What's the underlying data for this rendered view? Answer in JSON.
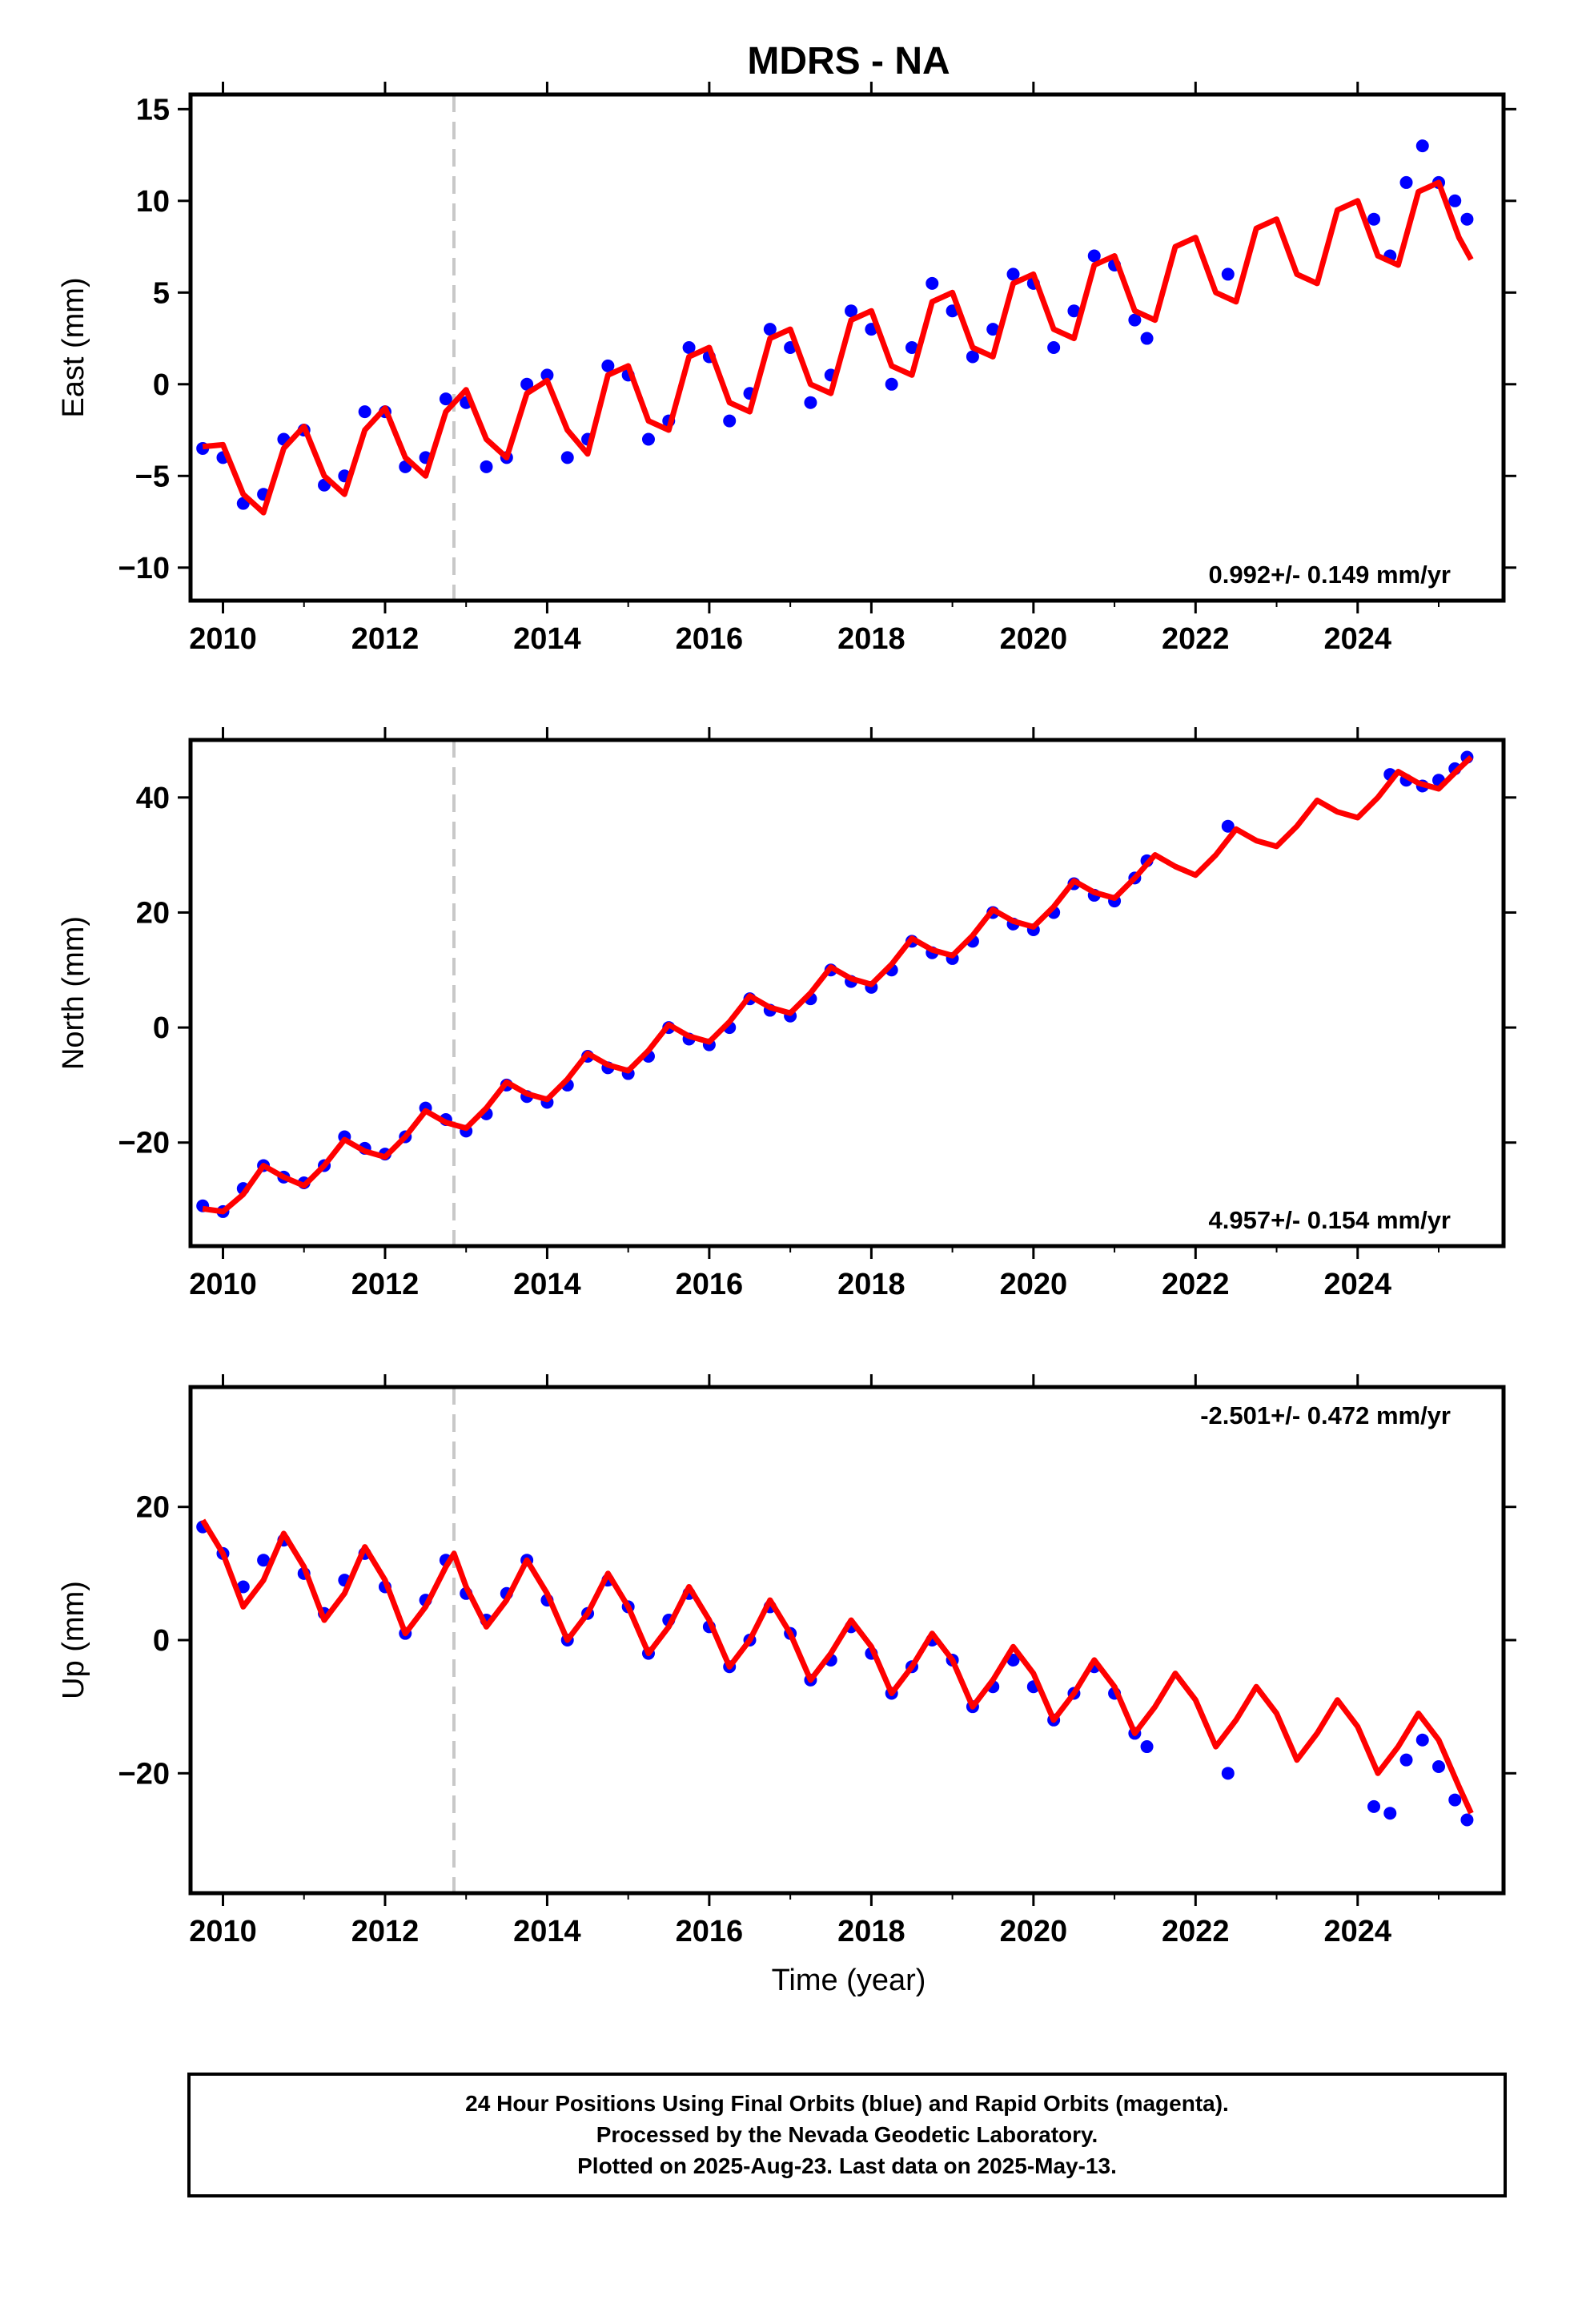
{
  "title": "MDRS - NA",
  "xlabel": "Time (year)",
  "footer": {
    "line1": "24 Hour Positions Using Final Orbits (blue) and Rapid Orbits (magenta).",
    "line2": "Processed by the Nevada Geodetic Laboratory.",
    "line3": "Plotted on 2025-Aug-23. Last data on 2025-May-13."
  },
  "colors": {
    "data": "#0000ff",
    "model": "#ff0000",
    "step": "#c8c8c8",
    "frame": "#000000"
  },
  "chart_data": [
    {
      "type": "scatter",
      "ylabel": "East (mm)",
      "rate_label": "0.992+/- 0.149 mm/yr",
      "xlim": [
        2009.6,
        2025.8
      ],
      "ylim": [
        -11.8,
        15.8
      ],
      "xticks": [
        2010,
        2012,
        2014,
        2016,
        2018,
        2020,
        2022,
        2024
      ],
      "xtick_labels": [
        "2010",
        "2012",
        "2014",
        "2016",
        "2018",
        "2020",
        "2022",
        "2024"
      ],
      "yticks": [
        -10,
        -5,
        0,
        5,
        10,
        15
      ],
      "ytick_labels": [
        "−10",
        "−5",
        "0",
        "5",
        "10",
        "15"
      ],
      "step_epoch": 2012.85,
      "grid": false,
      "series": [
        {
          "role": "data",
          "x": [
            2009.75,
            2010.0,
            2010.25,
            2010.5,
            2010.75,
            2011.0,
            2011.25,
            2011.5,
            2011.75,
            2012.0,
            2012.25,
            2012.5,
            2012.75,
            2013.0,
            2013.25,
            2013.5,
            2013.75,
            2014.0,
            2014.25,
            2014.5,
            2014.75,
            2015.0,
            2015.25,
            2015.5,
            2015.75,
            2016.0,
            2016.25,
            2016.5,
            2016.75,
            2017.0,
            2017.25,
            2017.5,
            2017.75,
            2018.0,
            2018.25,
            2018.5,
            2018.75,
            2019.0,
            2019.25,
            2019.5,
            2019.75,
            2020.0,
            2020.25,
            2020.5,
            2020.75,
            2021.0,
            2021.25,
            2021.4,
            2022.4,
            2024.2,
            2024.4,
            2024.6,
            2024.8,
            2025.0,
            2025.2,
            2025.35
          ],
          "y": [
            -3.5,
            -4.0,
            -6.5,
            -6.0,
            -3.0,
            -2.5,
            -5.5,
            -5.0,
            -1.5,
            -1.5,
            -4.5,
            -4.0,
            -0.8,
            -1.0,
            -4.5,
            -4.0,
            0.0,
            0.5,
            -4.0,
            -3.0,
            1.0,
            0.5,
            -3.0,
            -2.0,
            2.0,
            1.5,
            -2.0,
            -0.5,
            3.0,
            2.0,
            -1.0,
            0.5,
            4.0,
            3.0,
            0.0,
            2.0,
            5.5,
            4.0,
            1.5,
            3.0,
            6.0,
            5.5,
            2.0,
            4.0,
            7.0,
            6.5,
            3.5,
            2.5,
            6.0,
            9.0,
            7.0,
            11.0,
            13.0,
            11.0,
            10.0,
            9.0
          ]
        },
        {
          "role": "model",
          "x": [
            2009.75,
            2010.0,
            2010.25,
            2010.5,
            2010.75,
            2011.0,
            2011.25,
            2011.5,
            2011.75,
            2012.0,
            2012.25,
            2012.5,
            2012.75,
            2013.0,
            2013.25,
            2013.5,
            2013.75,
            2014.0,
            2014.25,
            2014.5,
            2014.75,
            2015.0,
            2015.25,
            2015.5,
            2015.75,
            2016.0,
            2016.25,
            2016.5,
            2016.75,
            2017.0,
            2017.25,
            2017.5,
            2017.75,
            2018.0,
            2018.25,
            2018.5,
            2018.75,
            2019.0,
            2019.25,
            2019.5,
            2019.75,
            2020.0,
            2020.25,
            2020.5,
            2020.75,
            2021.0,
            2021.25,
            2021.5,
            2021.75,
            2022.0,
            2022.25,
            2022.5,
            2022.75,
            2023.0,
            2023.25,
            2023.5,
            2023.75,
            2024.0,
            2024.25,
            2024.5,
            2024.75,
            2025.0,
            2025.25,
            2025.4
          ],
          "y": [
            -3.4,
            -3.3,
            -6.0,
            -7.0,
            -3.5,
            -2.3,
            -5.0,
            -6.0,
            -2.5,
            -1.3,
            -4.0,
            -5.0,
            -1.5,
            -0.3,
            -3.0,
            -4.0,
            -0.5,
            0.2,
            -2.5,
            -3.8,
            0.5,
            1.0,
            -2.0,
            -2.5,
            1.5,
            2.0,
            -1.0,
            -1.5,
            2.5,
            3.0,
            0.0,
            -0.5,
            3.5,
            4.0,
            1.0,
            0.5,
            4.5,
            5.0,
            2.0,
            1.5,
            5.5,
            6.0,
            3.0,
            2.5,
            6.5,
            7.0,
            4.0,
            3.5,
            7.5,
            8.0,
            5.0,
            4.5,
            8.5,
            9.0,
            6.0,
            5.5,
            9.5,
            10.0,
            7.0,
            6.5,
            10.5,
            11.0,
            8.0,
            6.8
          ]
        }
      ]
    },
    {
      "type": "scatter",
      "ylabel": "North (mm)",
      "rate_label": "4.957+/- 0.154 mm/yr",
      "xlim": [
        2009.6,
        2025.8
      ],
      "ylim": [
        -38,
        50
      ],
      "xticks": [
        2010,
        2012,
        2014,
        2016,
        2018,
        2020,
        2022,
        2024
      ],
      "xtick_labels": [
        "2010",
        "2012",
        "2014",
        "2016",
        "2018",
        "2020",
        "2022",
        "2024"
      ],
      "yticks": [
        -20,
        0,
        20,
        40
      ],
      "ytick_labels": [
        "−20",
        "0",
        "20",
        "40"
      ],
      "step_epoch": 2012.85,
      "grid": false,
      "series": [
        {
          "role": "data",
          "x": [
            2009.75,
            2010.0,
            2010.25,
            2010.5,
            2010.75,
            2011.0,
            2011.25,
            2011.5,
            2011.75,
            2012.0,
            2012.25,
            2012.5,
            2012.75,
            2013.0,
            2013.25,
            2013.5,
            2013.75,
            2014.0,
            2014.25,
            2014.5,
            2014.75,
            2015.0,
            2015.25,
            2015.5,
            2015.75,
            2016.0,
            2016.25,
            2016.5,
            2016.75,
            2017.0,
            2017.25,
            2017.5,
            2017.75,
            2018.0,
            2018.25,
            2018.5,
            2018.75,
            2019.0,
            2019.25,
            2019.5,
            2019.75,
            2020.0,
            2020.25,
            2020.5,
            2020.75,
            2021.0,
            2021.25,
            2021.4,
            2022.4,
            2024.4,
            2024.6,
            2024.8,
            2025.0,
            2025.2,
            2025.35
          ],
          "y": [
            -31,
            -32,
            -28,
            -24,
            -26,
            -27,
            -24,
            -19,
            -21,
            -22,
            -19,
            -14,
            -16,
            -18,
            -15,
            -10,
            -12,
            -13,
            -10,
            -5,
            -7,
            -8,
            -5,
            0,
            -2,
            -3,
            0,
            5,
            3,
            2,
            5,
            10,
            8,
            7,
            10,
            15,
            13,
            12,
            15,
            20,
            18,
            17,
            20,
            25,
            23,
            22,
            26,
            29,
            35,
            44,
            43,
            42,
            43,
            45,
            47
          ]
        },
        {
          "role": "model",
          "x": [
            2009.75,
            2010.0,
            2010.25,
            2010.5,
            2010.75,
            2011.0,
            2011.25,
            2011.5,
            2011.75,
            2012.0,
            2012.25,
            2012.5,
            2012.75,
            2013.0,
            2013.25,
            2013.5,
            2013.75,
            2014.0,
            2014.25,
            2014.5,
            2014.75,
            2015.0,
            2015.25,
            2015.5,
            2015.75,
            2016.0,
            2016.25,
            2016.5,
            2016.75,
            2017.0,
            2017.25,
            2017.5,
            2017.75,
            2018.0,
            2018.25,
            2018.5,
            2018.75,
            2019.0,
            2019.25,
            2019.5,
            2019.75,
            2020.0,
            2020.25,
            2020.5,
            2020.75,
            2021.0,
            2021.25,
            2021.5,
            2021.75,
            2022.0,
            2022.25,
            2022.5,
            2022.75,
            2023.0,
            2023.25,
            2023.5,
            2023.75,
            2024.0,
            2024.25,
            2024.5,
            2024.75,
            2025.0,
            2025.25,
            2025.4
          ],
          "y": [
            -31.5,
            -32,
            -29,
            -24,
            -26,
            -27.5,
            -24,
            -19.5,
            -21.5,
            -22.5,
            -19,
            -14.5,
            -16.5,
            -17.5,
            -14,
            -9.5,
            -11.5,
            -12.5,
            -9,
            -4.5,
            -6.5,
            -7.5,
            -4,
            0.5,
            -1.5,
            -2.5,
            1,
            5.5,
            3.5,
            2.5,
            6,
            10.5,
            8.5,
            7.5,
            11,
            15.5,
            13.5,
            12.5,
            16,
            20.5,
            18.5,
            17.5,
            21,
            25.5,
            23.5,
            22.5,
            26,
            30,
            28,
            26.5,
            30,
            34.5,
            32.5,
            31.5,
            35,
            39.5,
            37.5,
            36.5,
            40,
            44.5,
            42.5,
            41.5,
            45,
            47
          ]
        }
      ]
    },
    {
      "type": "scatter",
      "ylabel": "Up (mm)",
      "rate_label": "-2.501+/- 0.472 mm/yr",
      "xlim": [
        2009.6,
        2025.8
      ],
      "ylim": [
        -38,
        38
      ],
      "xticks": [
        2010,
        2012,
        2014,
        2016,
        2018,
        2020,
        2022,
        2024
      ],
      "xtick_labels": [
        "2010",
        "2012",
        "2014",
        "2016",
        "2018",
        "2020",
        "2022",
        "2024"
      ],
      "yticks": [
        -20,
        0,
        20
      ],
      "ytick_labels": [
        "−20",
        "0",
        "20"
      ],
      "step_epoch": 2012.85,
      "grid": false,
      "series": [
        {
          "role": "data",
          "x": [
            2009.75,
            2010.0,
            2010.25,
            2010.5,
            2010.75,
            2011.0,
            2011.25,
            2011.5,
            2011.75,
            2012.0,
            2012.25,
            2012.5,
            2012.75,
            2013.0,
            2013.25,
            2013.5,
            2013.75,
            2014.0,
            2014.25,
            2014.5,
            2014.75,
            2015.0,
            2015.25,
            2015.5,
            2015.75,
            2016.0,
            2016.25,
            2016.5,
            2016.75,
            2017.0,
            2017.25,
            2017.5,
            2017.75,
            2018.0,
            2018.25,
            2018.5,
            2018.75,
            2019.0,
            2019.25,
            2019.5,
            2019.75,
            2020.0,
            2020.25,
            2020.5,
            2020.75,
            2021.0,
            2021.25,
            2021.4,
            2022.4,
            2024.2,
            2024.4,
            2024.6,
            2024.8,
            2025.0,
            2025.2,
            2025.35
          ],
          "y": [
            17,
            13,
            8,
            12,
            15,
            10,
            4,
            9,
            13,
            8,
            1,
            6,
            12,
            7,
            3,
            7,
            12,
            6,
            0,
            4,
            9,
            5,
            -2,
            3,
            7,
            2,
            -4,
            0,
            5,
            1,
            -6,
            -3,
            2,
            -2,
            -8,
            -4,
            0,
            -3,
            -10,
            -7,
            -3,
            -7,
            -12,
            -8,
            -4,
            -8,
            -14,
            -16,
            -20,
            -25,
            -26,
            -18,
            -15,
            -19,
            -24,
            -27
          ]
        },
        {
          "role": "model",
          "x": [
            2009.75,
            2010.0,
            2010.25,
            2010.5,
            2010.75,
            2011.0,
            2011.25,
            2011.5,
            2011.75,
            2012.0,
            2012.25,
            2012.5,
            2012.75,
            2012.851,
            2013.0,
            2013.25,
            2013.5,
            2013.75,
            2014.0,
            2014.25,
            2014.5,
            2014.75,
            2015.0,
            2015.25,
            2015.5,
            2015.75,
            2016.0,
            2016.25,
            2016.5,
            2016.75,
            2017.0,
            2017.25,
            2017.5,
            2017.75,
            2018.0,
            2018.25,
            2018.5,
            2018.75,
            2019.0,
            2019.25,
            2019.5,
            2019.75,
            2020.0,
            2020.25,
            2020.5,
            2020.75,
            2021.0,
            2021.25,
            2021.5,
            2021.75,
            2022.0,
            2022.25,
            2022.5,
            2022.75,
            2023.0,
            2023.25,
            2023.5,
            2023.75,
            2024.0,
            2024.25,
            2024.5,
            2024.75,
            2025.0,
            2025.25,
            2025.4
          ],
          "y": [
            18,
            13,
            5,
            9,
            16,
            11,
            3,
            7,
            14,
            9,
            1,
            5,
            11,
            13,
            8,
            2,
            6,
            12,
            7,
            0,
            4,
            10,
            5,
            -2,
            2,
            8,
            3,
            -4,
            0,
            6,
            1,
            -6,
            -2,
            3,
            -1,
            -8,
            -4,
            1,
            -3,
            -10,
            -6,
            -1,
            -5,
            -12,
            -8,
            -3,
            -7,
            -14,
            -10,
            -5,
            -9,
            -16,
            -12,
            -7,
            -11,
            -18,
            -14,
            -9,
            -13,
            -20,
            -16,
            -11,
            -15,
            -22,
            -26
          ]
        }
      ]
    }
  ]
}
